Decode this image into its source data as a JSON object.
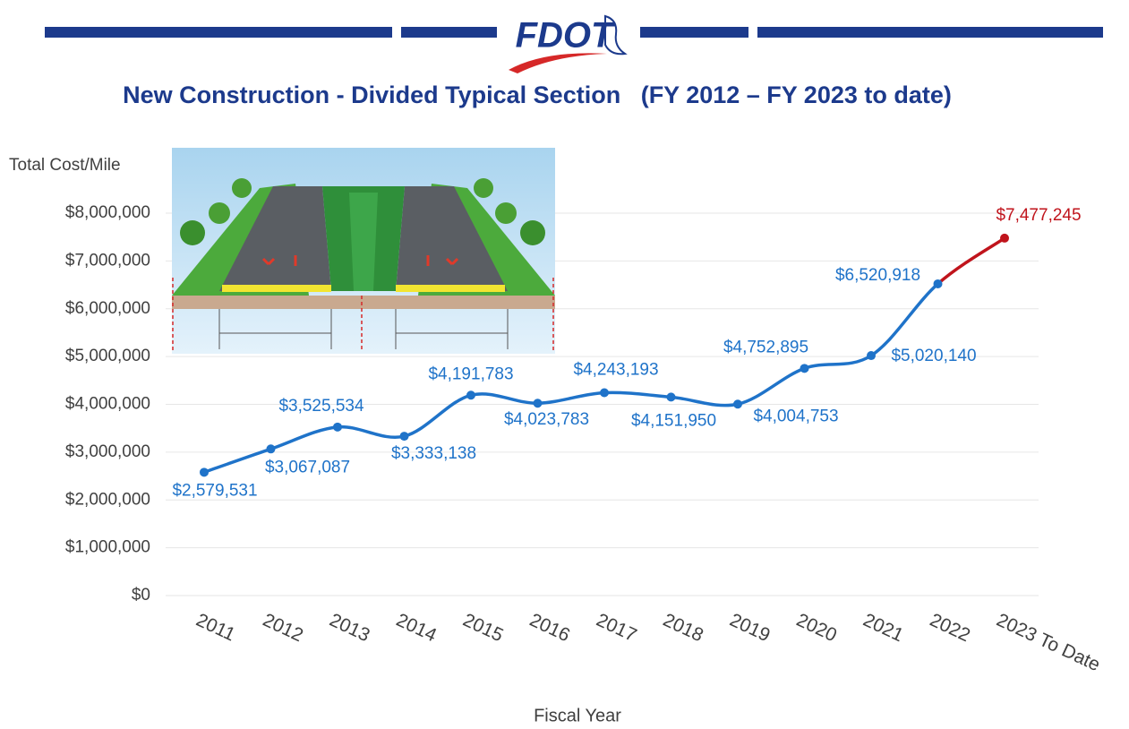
{
  "header": {
    "logo": "FDOT"
  },
  "chart_data": {
    "type": "line",
    "title": "New Construction - Divided Typical Section   (FY 2012 – FY 2023 to date)",
    "y_label": "Total Cost/Mile",
    "x_label": "Fiscal Year",
    "categories": [
      "2011",
      "2012",
      "2013",
      "2014",
      "2015",
      "2016",
      "2017",
      "2018",
      "2019",
      "2020",
      "2021",
      "2022",
      "2023 To Date"
    ],
    "values": [
      2579531,
      3067087,
      3525534,
      3333138,
      4191783,
      4023783,
      4243193,
      4151950,
      4004753,
      4752895,
      5020140,
      6520918,
      7477245
    ],
    "value_labels": [
      "$2,579,531",
      "$3,067,087",
      "$3,525,534",
      "$3,333,138",
      "$4,191,783",
      "$4,023,783",
      "$4,243,193",
      "$4,151,950",
      "$4,004,753",
      "$4,752,895",
      "$5,020,140",
      "$6,520,918",
      "$7,477,245"
    ],
    "point_colors": [
      "#1f73c9",
      "#1f73c9",
      "#1f73c9",
      "#1f73c9",
      "#1f73c9",
      "#1f73c9",
      "#1f73c9",
      "#1f73c9",
      "#1f73c9",
      "#1f73c9",
      "#1f73c9",
      "#1f73c9",
      "#c0141c"
    ],
    "ylim": [
      0,
      8000000
    ],
    "yticks": [
      {
        "value": 0,
        "label": "$0"
      },
      {
        "value": 1000000,
        "label": "$1,000,000"
      },
      {
        "value": 2000000,
        "label": "$2,000,000"
      },
      {
        "value": 3000000,
        "label": "$3,000,000"
      },
      {
        "value": 4000000,
        "label": "$4,000,000"
      },
      {
        "value": 5000000,
        "label": "$5,000,000"
      },
      {
        "value": 6000000,
        "label": "$6,000,000"
      },
      {
        "value": 7000000,
        "label": "$7,000,000"
      },
      {
        "value": 8000000,
        "label": "$8,000,000"
      }
    ],
    "grid": true,
    "smooth": true
  }
}
